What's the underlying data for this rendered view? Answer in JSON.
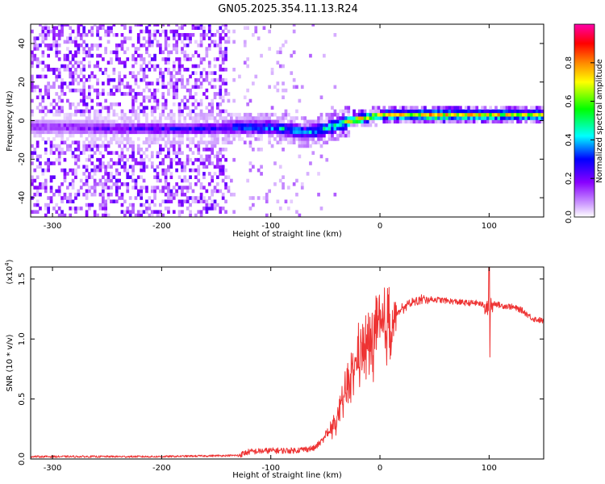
{
  "title": "GN05.2025.354.11.13.R24",
  "chart_data": [
    {
      "type": "heatmap",
      "title": "GN05.2025.354.11.13.R24",
      "xlabel": "Height of straight line (km)",
      "ylabel": "Frequency (Hz)",
      "xlim": [
        -320,
        150
      ],
      "ylim": [
        -50,
        50
      ],
      "xticks": [
        -300,
        -200,
        -100,
        0,
        100
      ],
      "yticks": [
        -40,
        -20,
        0,
        20,
        40
      ],
      "colorbar": {
        "label": "Normalized spectral amplitude",
        "range": [
          0,
          1
        ],
        "ticks": [
          "0.0",
          "0.2",
          "0.4",
          "0.6",
          "0.8"
        ],
        "colors": [
          "#ffffff",
          "#cc99ff",
          "#8800ff",
          "#0000ff",
          "#00ffff",
          "#00ff00",
          "#ffff00",
          "#ff8800",
          "#ff0000",
          "#ff00aa"
        ]
      },
      "ridge": {
        "points": [
          {
            "x": -300,
            "f": -4,
            "amp": 0.22
          },
          {
            "x": -250,
            "f": -5,
            "amp": 0.25
          },
          {
            "x": -200,
            "f": -5,
            "amp": 0.3
          },
          {
            "x": -150,
            "f": -5,
            "amp": 0.32
          },
          {
            "x": -120,
            "f": -4,
            "amp": 0.4
          },
          {
            "x": -90,
            "f": -5,
            "amp": 0.45
          },
          {
            "x": -70,
            "f": -7,
            "amp": 0.45
          },
          {
            "x": -50,
            "f": -5,
            "amp": 0.5
          },
          {
            "x": -35,
            "f": -2,
            "amp": 0.6
          },
          {
            "x": -20,
            "f": 0,
            "amp": 0.75
          },
          {
            "x": 0,
            "f": 2,
            "amp": 0.7
          },
          {
            "x": 50,
            "f": 2,
            "amp": 0.8
          },
          {
            "x": 100,
            "f": 2,
            "amp": 0.75
          },
          {
            "x": 150,
            "f": 2,
            "amp": 0.7
          }
        ]
      }
    },
    {
      "type": "line",
      "xlabel": "Height of straight line (km)",
      "ylabel": "SNR (10 * v/v)",
      "ylabel_scale": "(x10",
      "ylabel_exponent": "4",
      "xlim": [
        -320,
        150
      ],
      "ylim": [
        0,
        1.6
      ],
      "xticks": [
        -300,
        -200,
        -100,
        0,
        100
      ],
      "yticks": [
        "0.0",
        "0.5",
        "1.0",
        "1.5"
      ],
      "color": "#ee3333",
      "series": [
        {
          "name": "SNR",
          "x": [
            -320,
            -200,
            -130,
            -120,
            -100,
            -80,
            -60,
            -50,
            -40,
            -30,
            -20,
            -10,
            0,
            10,
            20,
            30,
            40,
            50,
            60,
            70,
            80,
            90,
            95,
            100,
            105,
            110,
            120,
            130,
            140,
            150
          ],
          "y": [
            0.02,
            0.02,
            0.03,
            0.06,
            0.07,
            0.07,
            0.09,
            0.18,
            0.3,
            0.6,
            0.85,
            0.95,
            1.05,
            1.15,
            1.25,
            1.31,
            1.33,
            1.33,
            1.32,
            1.31,
            1.3,
            1.3,
            1.28,
            1.25,
            1.3,
            1.28,
            1.27,
            1.24,
            1.17,
            1.15
          ]
        }
      ],
      "annotations": [
        {
          "x": 100,
          "y_min": 0.85,
          "y_max": 1.6,
          "label": "spike"
        }
      ]
    }
  ]
}
